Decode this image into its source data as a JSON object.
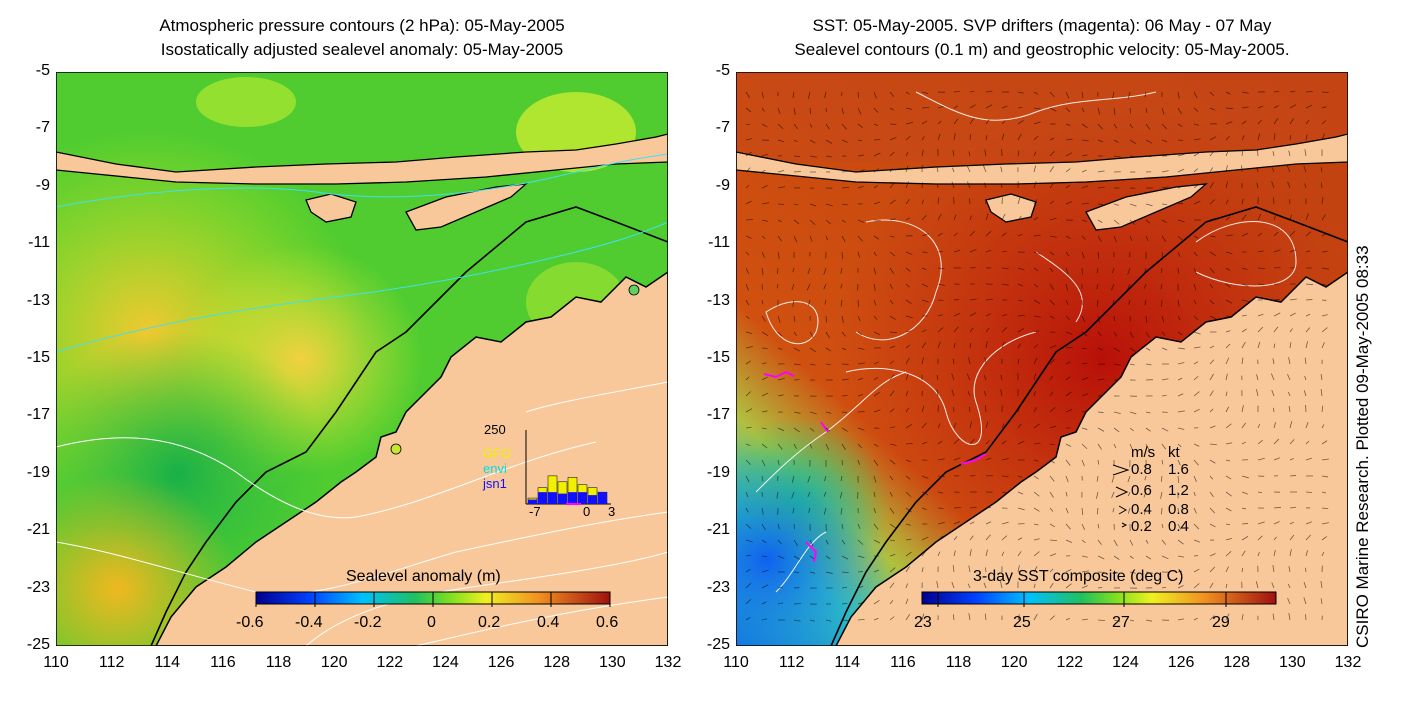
{
  "left_panel": {
    "title_line1": "Atmospheric pressure contours (2 hPa): 05-May-2005",
    "title_line2": "Isostatically adjusted sealevel anomaly: 05-May-2005",
    "colorbar": {
      "label": "Sealevel anomaly (m)",
      "ticks": [
        "-0.6",
        "-0.4",
        "-0.2",
        "0",
        "0.2",
        "0.4",
        "0.6"
      ]
    },
    "inset": {
      "ymax_label": "250",
      "xticks": [
        "-7",
        "0",
        "3"
      ],
      "legend": [
        {
          "label": "GFO",
          "color": "#f0f000"
        },
        {
          "label": "envi",
          "color": "#00e0e0"
        },
        {
          "label": "jsn1",
          "color": "#1010ff"
        }
      ],
      "bars_total": [
        20,
        55,
        95,
        75,
        90,
        65,
        55,
        40
      ],
      "bars_jsn1": [
        15,
        40,
        40,
        35,
        40,
        40,
        30,
        40
      ]
    }
  },
  "right_panel": {
    "title_line1": "SST: 05-May-2005. SVP drifters (magenta): 06 May - 07 May",
    "title_line2": "Sealevel contours (0.1 m) and geostrophic velocity: 05-May-2005.",
    "colorbar": {
      "label": "3-day SST composite (deg C)",
      "ticks": [
        "23",
        "25",
        "27",
        "29"
      ]
    },
    "velocity_legend": {
      "header_ms": "m/s",
      "header_kt": "kt",
      "rows": [
        {
          "ms": "0.8",
          "kt": "1.6"
        },
        {
          "ms": "0.6",
          "kt": "1.2"
        },
        {
          "ms": "0.4",
          "kt": "0.8"
        },
        {
          "ms": "0.2",
          "kt": "0.4"
        }
      ]
    }
  },
  "axes": {
    "x_ticks": [
      "110",
      "112",
      "114",
      "116",
      "118",
      "120",
      "122",
      "124",
      "126",
      "128",
      "130",
      "132"
    ],
    "y_ticks": [
      "-5",
      "-7",
      "-9",
      "-11",
      "-13",
      "-15",
      "-17",
      "-19",
      "-21",
      "-23",
      "-25"
    ],
    "lon_range": [
      110,
      132
    ],
    "lat_range": [
      -25,
      -5
    ]
  },
  "credit": "CSIRO Marine Research. Plotted 09-May-2005 08:33",
  "colors": {
    "land": "#f8c89a",
    "coast": "#000000",
    "contour": "#ffffff",
    "pressure_contour": "#40e0f0",
    "drifter": "#ff00ff"
  }
}
